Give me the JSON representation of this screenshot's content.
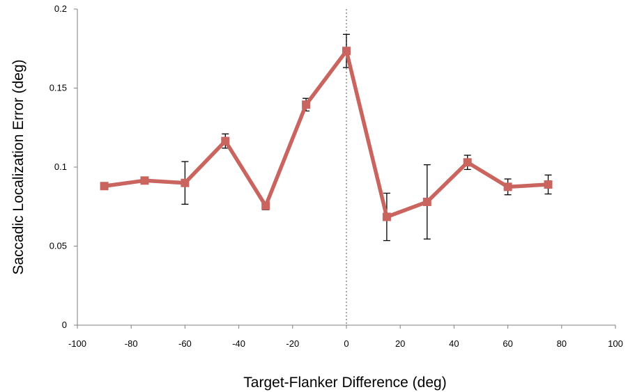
{
  "chart_data": {
    "type": "line",
    "title": "",
    "xlabel": "Target-Flanker Difference (deg)",
    "ylabel": "Saccadic Localization Error (deg)",
    "xlim": [
      -100,
      100
    ],
    "ylim": [
      0,
      0.2
    ],
    "xticks": [
      -100,
      -80,
      -60,
      -40,
      -20,
      0,
      20,
      40,
      60,
      80,
      100
    ],
    "yticks": [
      0,
      0.05,
      0.1,
      0.15,
      0.2
    ],
    "xtick_labels": [
      "-100",
      "-80",
      "-60",
      "-40",
      "-20",
      "0",
      "20",
      "40",
      "60",
      "80",
      "100"
    ],
    "ytick_labels": [
      "0",
      "0.05",
      "0.1",
      "0.15",
      "0.2"
    ],
    "reference_line": {
      "x": 0,
      "style": "dotted"
    },
    "grid": false,
    "legend": "none",
    "series": [
      {
        "color": "#c9645f",
        "marker": "square",
        "x": [
          -90,
          -75,
          -60,
          -45,
          -30,
          -15,
          0,
          15,
          30,
          45,
          60,
          75
        ],
        "y": [
          0.088,
          0.0915,
          0.09,
          0.1165,
          0.0755,
          0.1395,
          0.1735,
          0.0685,
          0.078,
          0.103,
          0.0875,
          0.089
        ],
        "error": [
          0.001,
          0.001,
          0.0135,
          0.0045,
          0.0025,
          0.004,
          0.0105,
          0.015,
          0.0235,
          0.0045,
          0.005,
          0.006
        ]
      }
    ]
  }
}
